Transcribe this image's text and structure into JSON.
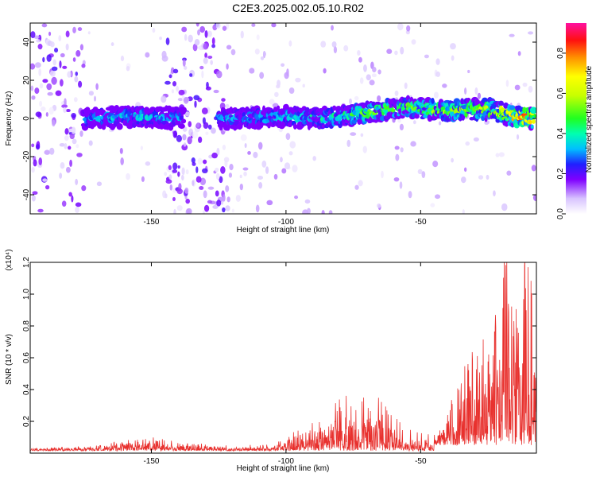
{
  "title": "C2E3.2025.002.05.10.R02",
  "chart_data": [
    {
      "type": "heatmap",
      "xlabel": "Height of straight line (km)",
      "ylabel": "Frequency (Hz)",
      "xlim": [
        -195,
        -7
      ],
      "ylim": [
        -50,
        50
      ],
      "xticks": [
        -150,
        -100,
        -50
      ],
      "yticks": [
        -40,
        -20,
        0,
        20,
        40
      ],
      "colorbar": {
        "label": "Normalized spectral amplitude",
        "range": [
          0,
          0.95
        ],
        "ticks": [
          0.0,
          0.2,
          0.4,
          0.6,
          0.8
        ]
      },
      "ridge": {
        "description_points_x": [
          -175,
          -155,
          -140,
          -120,
          -100,
          -85,
          -70,
          -55,
          -40,
          -25,
          -15,
          -8
        ],
        "center_freq_hz": [
          0,
          1,
          0,
          0,
          1,
          0,
          3,
          6,
          4,
          5,
          1,
          0
        ],
        "peak_amplitude": [
          0.35,
          0.4,
          0.35,
          0.35,
          0.38,
          0.45,
          0.55,
          0.55,
          0.6,
          0.65,
          0.85,
          0.95
        ]
      }
    },
    {
      "type": "line",
      "xlabel": "Height of straight line (km)",
      "ylabel": "SNR (10 * v/v)",
      "yscale_label": "(x10⁴)",
      "xlim": [
        -195,
        -7
      ],
      "ylim": [
        0,
        1.2
      ],
      "xticks": [
        -150,
        -100,
        -50
      ],
      "yticks": [
        0.2,
        0.4,
        0.6,
        0.8,
        1.0,
        1.2
      ],
      "color": "#e8312e",
      "envelope": {
        "x": [
          -195,
          -170,
          -160,
          -150,
          -140,
          -120,
          -105,
          -95,
          -85,
          -75,
          -70,
          -65,
          -55,
          -45,
          -40,
          -35,
          -30,
          -25,
          -20,
          -18,
          -15,
          -12,
          -10,
          -8,
          -7
        ],
        "y": [
          0.03,
          0.04,
          0.07,
          0.09,
          0.06,
          0.04,
          0.05,
          0.14,
          0.25,
          0.28,
          0.38,
          0.28,
          0.12,
          0.1,
          0.25,
          0.45,
          0.6,
          0.8,
          1.05,
          1.2,
          0.85,
          0.95,
          1.0,
          0.8,
          0.7
        ]
      }
    }
  ]
}
